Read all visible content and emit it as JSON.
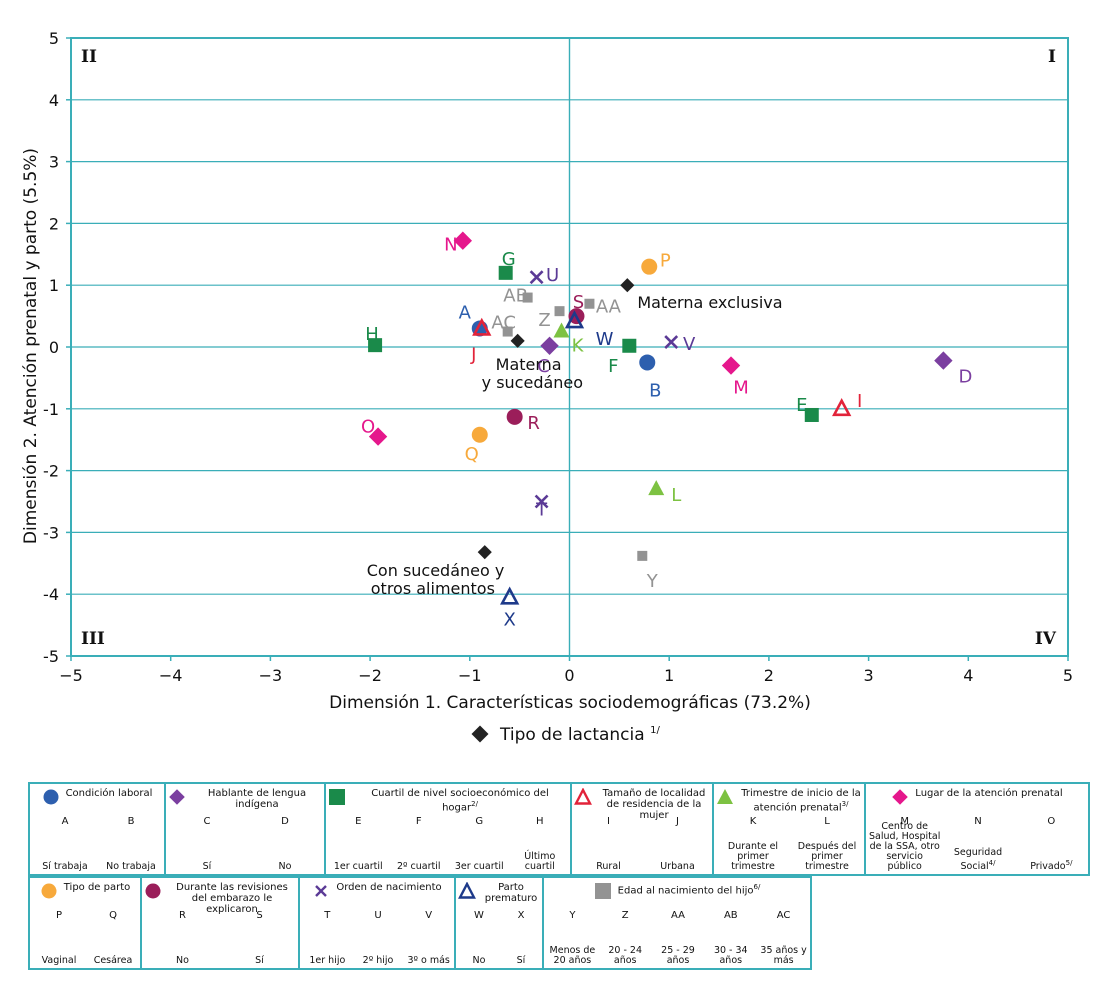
{
  "chart_data": {
    "type": "scatter",
    "xlabel": "Dimensión 1. Características sociodemográficas (73.2%)",
    "ylabel": "Dimensión 2. Atención prenatal y parto (5.5%)",
    "xlim": [
      -5,
      5
    ],
    "ylim": [
      -5,
      5
    ],
    "x_ticks": [
      "−5",
      "−4",
      "−3",
      "−2",
      "−1",
      "0",
      "1",
      "2",
      "3",
      "4",
      "5"
    ],
    "y_ticks": [
      "5",
      "4",
      "3",
      "2",
      "1",
      "0",
      "-1",
      "-2",
      "-3",
      "-4",
      "-5"
    ],
    "grid": true,
    "quadrants": {
      "I": "I",
      "II": "II",
      "III": "III",
      "IV": "IV"
    },
    "series": [
      {
        "name": "Condición laboral",
        "marker": "circle",
        "color": "#2d5fae",
        "points": [
          {
            "label": "A",
            "x": -0.9,
            "y": 0.3
          },
          {
            "label": "B",
            "x": 0.78,
            "y": -0.25
          }
        ]
      },
      {
        "name": "Hablante de lengua indígena",
        "marker": "diamond",
        "color": "#7b3fa0",
        "points": [
          {
            "label": "C",
            "x": -0.2,
            "y": 0.02
          },
          {
            "label": "D",
            "x": 3.75,
            "y": -0.22
          }
        ]
      },
      {
        "name": "Cuartil de nivel socioeconómico del hogar",
        "marker": "square",
        "color": "#1a8a4a",
        "points": [
          {
            "label": "E",
            "x": 2.43,
            "y": -1.1
          },
          {
            "label": "F",
            "x": 0.6,
            "y": 0.02
          },
          {
            "label": "G",
            "x": -0.64,
            "y": 1.2
          },
          {
            "label": "H",
            "x": -1.95,
            "y": 0.03
          }
        ]
      },
      {
        "name": "Tamaño de localidad de residencia de la mujer",
        "marker": "triangle-open",
        "color": "#e2233a",
        "points": [
          {
            "label": "I",
            "x": 2.73,
            "y": -1.0
          },
          {
            "label": "J",
            "x": -0.88,
            "y": 0.3
          }
        ]
      },
      {
        "name": "Trimestre de inicio de la atención prenatal",
        "marker": "triangle",
        "color": "#7dc242",
        "points": [
          {
            "label": "K",
            "x": -0.08,
            "y": 0.25
          },
          {
            "label": "L",
            "x": 0.87,
            "y": -2.3
          }
        ]
      },
      {
        "name": "Lugar de la atención prenatal",
        "marker": "diamond",
        "color": "#e5178c",
        "points": [
          {
            "label": "M",
            "x": 1.62,
            "y": -0.3
          },
          {
            "label": "N",
            "x": -1.07,
            "y": 1.72
          },
          {
            "label": "O",
            "x": -1.92,
            "y": -1.45
          }
        ]
      },
      {
        "name": "Tipo de parto",
        "marker": "circle",
        "color": "#f7a93b",
        "points": [
          {
            "label": "P",
            "x": 0.8,
            "y": 1.3
          },
          {
            "label": "Q",
            "x": -0.9,
            "y": -1.42
          }
        ]
      },
      {
        "name": "Durante las revisiones del embarazo le explicaron",
        "marker": "circle",
        "color": "#9b1e5a",
        "points": [
          {
            "label": "R",
            "x": -0.55,
            "y": -1.13
          },
          {
            "label": "S",
            "x": 0.07,
            "y": 0.5
          }
        ]
      },
      {
        "name": "Orden de nacimiento",
        "marker": "x",
        "color": "#5b3a96",
        "points": [
          {
            "label": "T",
            "x": -0.28,
            "y": -2.5
          },
          {
            "label": "U",
            "x": -0.33,
            "y": 1.13
          },
          {
            "label": "V",
            "x": 1.02,
            "y": 0.08
          }
        ]
      },
      {
        "name": "Parto prematuro",
        "marker": "triangle-open",
        "color": "#1e3a8a",
        "points": [
          {
            "label": "W",
            "x": 0.05,
            "y": 0.42
          },
          {
            "label": "X",
            "x": -0.6,
            "y": -4.05
          }
        ]
      },
      {
        "name": "Edad al nacimiento del hijo",
        "marker": "square-small",
        "color": "#939393",
        "points": [
          {
            "label": "Y",
            "x": 0.73,
            "y": -3.38
          },
          {
            "label": "Z",
            "x": -0.1,
            "y": 0.58
          },
          {
            "label": "AA",
            "x": 0.2,
            "y": 0.7
          },
          {
            "label": "AB",
            "x": -0.42,
            "y": 0.8
          },
          {
            "label": "AC",
            "x": -0.62,
            "y": 0.25
          }
        ]
      },
      {
        "name": "Tipo de lactancia",
        "marker": "diamond-small",
        "color": "#222222",
        "points": [
          {
            "label": "Materna exclusiva",
            "x": 0.58,
            "y": 1.0
          },
          {
            "label": "Materna y sucedáneo",
            "x": -0.52,
            "y": 0.1
          },
          {
            "label": "Con sucedáneo y otros alimentos",
            "x": -0.85,
            "y": -3.32
          }
        ]
      }
    ],
    "below_legend": {
      "label": "Tipo de lactancia",
      "superscript": "1/"
    }
  },
  "legend_table": {
    "row1": [
      {
        "title": "Condición laboral",
        "marker": "circle",
        "color": "#2d5fae",
        "cols": [
          {
            "code": "A",
            "desc": "Sí trabaja"
          },
          {
            "code": "B",
            "desc": "No trabaja"
          }
        ]
      },
      {
        "title": "Hablante de lengua indígena",
        "marker": "diamond",
        "color": "#7b3fa0",
        "cols": [
          {
            "code": "C",
            "desc": "Sí"
          },
          {
            "code": "D",
            "desc": "No"
          }
        ]
      },
      {
        "title": "Cuartil de nivel socioeconómico del hogar",
        "sup": "2/",
        "marker": "square",
        "color": "#1a8a4a",
        "cols": [
          {
            "code": "E",
            "desc": "1er cuartil"
          },
          {
            "code": "F",
            "desc": "2º cuartil"
          },
          {
            "code": "G",
            "desc": "3er cuartil"
          },
          {
            "code": "H",
            "desc": "Último cuartil"
          }
        ]
      },
      {
        "title": "Tamaño de localidad de residencia de la mujer",
        "marker": "triangle-open",
        "color": "#e2233a",
        "cols": [
          {
            "code": "I",
            "desc": "Rural"
          },
          {
            "code": "J",
            "desc": "Urbana"
          }
        ]
      },
      {
        "title": "Trimestre de inicio de la atención prenatal",
        "sup": "3/",
        "marker": "triangle",
        "color": "#7dc242",
        "cols": [
          {
            "code": "K",
            "desc": "Durante el primer trimestre"
          },
          {
            "code": "L",
            "desc": "Después del primer trimestre"
          }
        ]
      },
      {
        "title": "Lugar de la atención prenatal",
        "marker": "diamond",
        "color": "#e5178c",
        "cols": [
          {
            "code": "M",
            "desc": "Centro de Salud, Hospital de la SSA, otro servicio público"
          },
          {
            "code": "N",
            "desc": "Seguridad Social",
            "sup": "4/"
          },
          {
            "code": "O",
            "desc": "Privado",
            "sup": "5/"
          }
        ]
      }
    ],
    "row2": [
      {
        "title": "Tipo de parto",
        "marker": "circle",
        "color": "#f7a93b",
        "cols": [
          {
            "code": "P",
            "desc": "Vaginal"
          },
          {
            "code": "Q",
            "desc": "Cesárea"
          }
        ]
      },
      {
        "title": "Durante las revisiones del embarazo le explicaron",
        "marker": "circle",
        "color": "#9b1e5a",
        "cols": [
          {
            "code": "R",
            "desc": "No"
          },
          {
            "code": "S",
            "desc": "Sí"
          }
        ]
      },
      {
        "title": "Orden de nacimiento",
        "marker": "x",
        "color": "#5b3a96",
        "cols": [
          {
            "code": "T",
            "desc": "1er hijo"
          },
          {
            "code": "U",
            "desc": "2º hijo"
          },
          {
            "code": "V",
            "desc": "3º o más"
          }
        ]
      },
      {
        "title": "Parto prematuro",
        "marker": "triangle-open",
        "color": "#1e3a8a",
        "cols": [
          {
            "code": "W",
            "desc": "No"
          },
          {
            "code": "X",
            "desc": "Sí"
          }
        ]
      },
      {
        "title": "Edad al nacimiento del hijo",
        "sup": "6/",
        "marker": "square",
        "color": "#939393",
        "cols": [
          {
            "code": "Y",
            "desc": "Menos de 20 años"
          },
          {
            "code": "Z",
            "desc": "20 - 24 años"
          },
          {
            "code": "AA",
            "desc": "25 - 29 años"
          },
          {
            "code": "AB",
            "desc": "30 - 34 años"
          },
          {
            "code": "AC",
            "desc": "35 años y más"
          }
        ]
      }
    ]
  }
}
